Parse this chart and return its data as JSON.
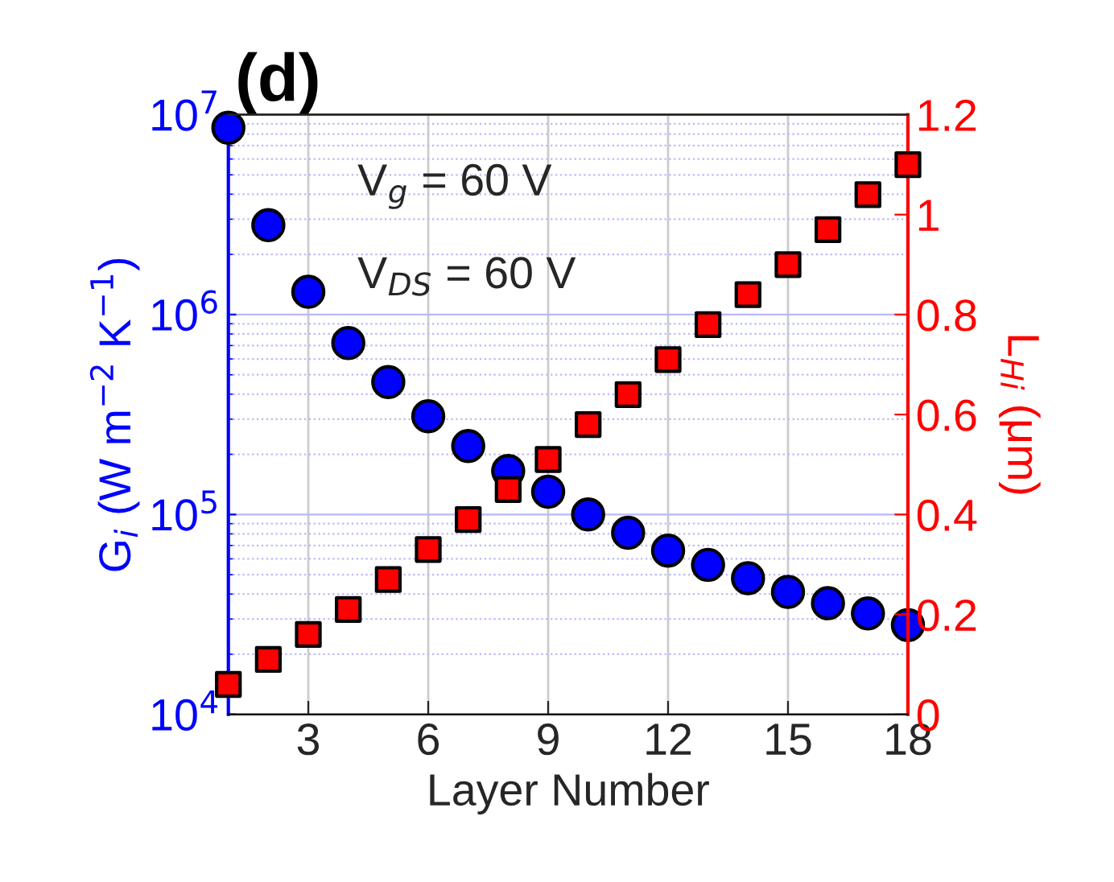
{
  "chart_data": {
    "type": "scatter",
    "title": "(d)",
    "xlabel": "Layer Number",
    "ylabel": "G$_{i}$ (W m$^{−2}$ K$^{−1}$)",
    "y2label": "L$_{Hi}$ (μm)",
    "annotations": [
      "V$_{g}$ = 60 V",
      "V$_{DS}$ = 60 V"
    ],
    "x": [
      1,
      2,
      3,
      4,
      5,
      6,
      7,
      8,
      9,
      10,
      11,
      12,
      13,
      14,
      15,
      16,
      17,
      18
    ],
    "series": [
      {
        "color": "#0000ff",
        "marker": "circle",
        "values": [
          8600000,
          2800000,
          1300000,
          720000,
          460000,
          310000,
          220000,
          165000,
          130000,
          100000,
          81000,
          66000,
          56000,
          48000,
          41000,
          36000,
          32000,
          28000
        ]
      },
      {
        "color": "#ff0000",
        "marker": "square",
        "axis": "y2",
        "values": [
          0.06,
          0.11,
          0.16,
          0.21,
          0.27,
          0.33,
          0.39,
          0.45,
          0.51,
          0.58,
          0.64,
          0.71,
          0.78,
          0.84,
          0.9,
          0.97,
          1.04,
          1.1
        ]
      }
    ],
    "log": "y",
    "grid": true,
    "xlim": [
      1,
      18
    ],
    "xticks": [
      3,
      6,
      9,
      12,
      15,
      18
    ],
    "ylim": [
      10000,
      10000000
    ],
    "yticks": [
      {
        "value": 10000,
        "label": "10$^{4}$"
      },
      {
        "value": 20000,
        "label": null
      },
      {
        "value": 30000,
        "label": null
      },
      {
        "value": 40000,
        "label": null
      },
      {
        "value": 50000,
        "label": null
      },
      {
        "value": 60000,
        "label": null
      },
      {
        "value": 70000,
        "label": null
      },
      {
        "value": 80000,
        "label": null
      },
      {
        "value": 90000,
        "label": null
      },
      {
        "value": 100000,
        "label": "10$^{5}$"
      },
      {
        "value": 200000,
        "label": null
      },
      {
        "value": 300000,
        "label": null
      },
      {
        "value": 400000,
        "label": null
      },
      {
        "value": 500000,
        "label": null
      },
      {
        "value": 600000,
        "label": null
      },
      {
        "value": 700000,
        "label": null
      },
      {
        "value": 800000,
        "label": null
      },
      {
        "value": 900000,
        "label": null
      },
      {
        "value": 1000000,
        "label": "10$^{6}$"
      },
      {
        "value": 2000000,
        "label": null
      },
      {
        "value": 3000000,
        "label": null
      },
      {
        "value": 4000000,
        "label": null
      },
      {
        "value": 5000000,
        "label": null
      },
      {
        "value": 6000000,
        "label": null
      },
      {
        "value": 7000000,
        "label": null
      },
      {
        "value": 8000000,
        "label": null
      },
      {
        "value": 9000000,
        "label": null
      },
      {
        "value": 10000000,
        "label": "10$^{7}$"
      }
    ],
    "y2lim": [
      0,
      1.2
    ],
    "y2ticks": [
      0,
      0.2,
      0.4,
      0.6,
      0.8,
      1,
      1.2
    ]
  }
}
